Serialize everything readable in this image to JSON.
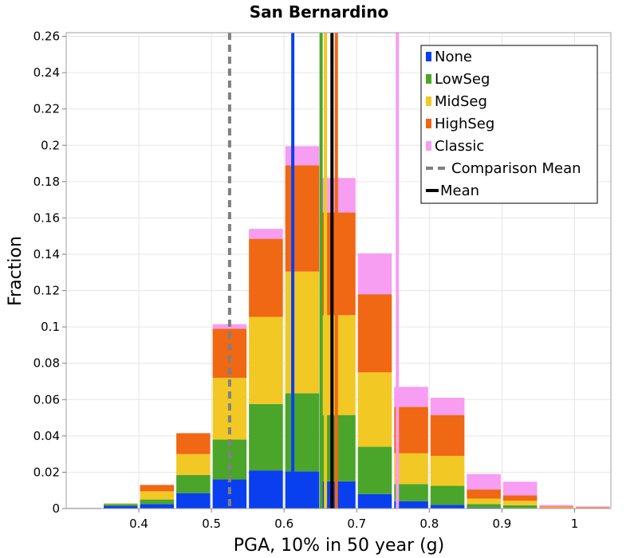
{
  "chart_data": {
    "type": "bar",
    "stacked": true,
    "title": "San Bernardino",
    "xlabel": "PGA, 10% in 50 year (g)",
    "ylabel": "Fraction",
    "xlim": [
      0.3,
      1.05
    ],
    "ylim": [
      0,
      0.262
    ],
    "grid": true,
    "legend_position": "top-right",
    "x_ticks": [
      {
        "v": 0.4,
        "label": "0.4"
      },
      {
        "v": 0.5,
        "label": "0.5"
      },
      {
        "v": 0.6,
        "label": "0.6"
      },
      {
        "v": 0.7,
        "label": "0.7"
      },
      {
        "v": 0.8,
        "label": "0.8"
      },
      {
        "v": 0.9,
        "label": "0.9"
      },
      {
        "v": 1.0,
        "label": "1"
      }
    ],
    "y_ticks": [
      {
        "v": 0,
        "label": "0"
      },
      {
        "v": 0.02,
        "label": "0.02"
      },
      {
        "v": 0.04,
        "label": "0.04"
      },
      {
        "v": 0.06,
        "label": "0.06"
      },
      {
        "v": 0.08,
        "label": "0.08"
      },
      {
        "v": 0.1,
        "label": "0.1"
      },
      {
        "v": 0.12,
        "label": "0.12"
      },
      {
        "v": 0.14,
        "label": "0.14"
      },
      {
        "v": 0.16,
        "label": "0.16"
      },
      {
        "v": 0.18,
        "label": "0.18"
      },
      {
        "v": 0.2,
        "label": "0.2"
      },
      {
        "v": 0.22,
        "label": "0.22"
      },
      {
        "v": 0.24,
        "label": "0.24"
      },
      {
        "v": 0.26,
        "label": "0.26"
      }
    ],
    "bin_width": 0.05,
    "bin_centers": [
      0.325,
      0.375,
      0.425,
      0.475,
      0.525,
      0.575,
      0.625,
      0.675,
      0.725,
      0.775,
      0.825,
      0.875,
      0.925,
      0.975,
      1.025
    ],
    "series": [
      {
        "name": "None",
        "color": "#0a3ff0",
        "values": [
          0.0003,
          0.0015,
          0.0025,
          0.0085,
          0.016,
          0.021,
          0.0205,
          0.015,
          0.008,
          0.004,
          0.002,
          0.0005,
          0.0003,
          0.0001,
          0.0001
        ]
      },
      {
        "name": "LowSeg",
        "color": "#4aa52a",
        "values": [
          0.0,
          0.001,
          0.0025,
          0.01,
          0.022,
          0.0365,
          0.043,
          0.0365,
          0.026,
          0.0095,
          0.0105,
          0.002,
          0.0015,
          0.0002,
          0.0001
        ]
      },
      {
        "name": "MidSeg",
        "color": "#f2c824",
        "values": [
          0.0,
          0.0003,
          0.0045,
          0.0115,
          0.034,
          0.048,
          0.067,
          0.055,
          0.041,
          0.017,
          0.0165,
          0.003,
          0.0025,
          0.0004,
          0.0002
        ]
      },
      {
        "name": "HighSeg",
        "color": "#f06714",
        "values": [
          0.0,
          0.0001,
          0.0035,
          0.0115,
          0.027,
          0.043,
          0.0585,
          0.0565,
          0.043,
          0.0255,
          0.0225,
          0.005,
          0.003,
          0.0005,
          0.0003
        ]
      },
      {
        "name": "Classic",
        "color": "#f79df2",
        "values": [
          0.0,
          0.0,
          0.0,
          0.0,
          0.0025,
          0.0055,
          0.0105,
          0.019,
          0.0225,
          0.011,
          0.0095,
          0.0085,
          0.0075,
          0.0008,
          0.0005
        ]
      }
    ],
    "vertical_lines": [
      {
        "series": "None",
        "x": 0.612,
        "color": "#0a3ff0",
        "style": "solid"
      },
      {
        "series": "LowSeg",
        "x": 0.651,
        "color": "#4aa52a",
        "style": "solid"
      },
      {
        "series": "MidSeg",
        "x": 0.657,
        "color": "#f2c824",
        "style": "solid"
      },
      {
        "series": "HighSeg",
        "x": 0.672,
        "color": "#f06714",
        "style": "solid"
      },
      {
        "series": "Classic",
        "x": 0.756,
        "color": "#f79df2",
        "style": "solid"
      },
      {
        "series": "Comparison Mean",
        "x": 0.525,
        "color": "#808080",
        "style": "dashed"
      },
      {
        "series": "Mean",
        "x": 0.666,
        "color": "#000000",
        "style": "solid"
      }
    ],
    "legend": [
      {
        "label": "None",
        "color": "#0a3ff0",
        "kind": "box"
      },
      {
        "label": "LowSeg",
        "color": "#4aa52a",
        "kind": "box"
      },
      {
        "label": "MidSeg",
        "color": "#f2c824",
        "kind": "box"
      },
      {
        "label": "HighSeg",
        "color": "#f06714",
        "kind": "box"
      },
      {
        "label": "Classic",
        "color": "#f79df2",
        "kind": "box"
      },
      {
        "label": "Comparison Mean",
        "color": "#808080",
        "kind": "dashed-line"
      },
      {
        "label": "Mean",
        "color": "#000000",
        "kind": "line"
      }
    ]
  }
}
